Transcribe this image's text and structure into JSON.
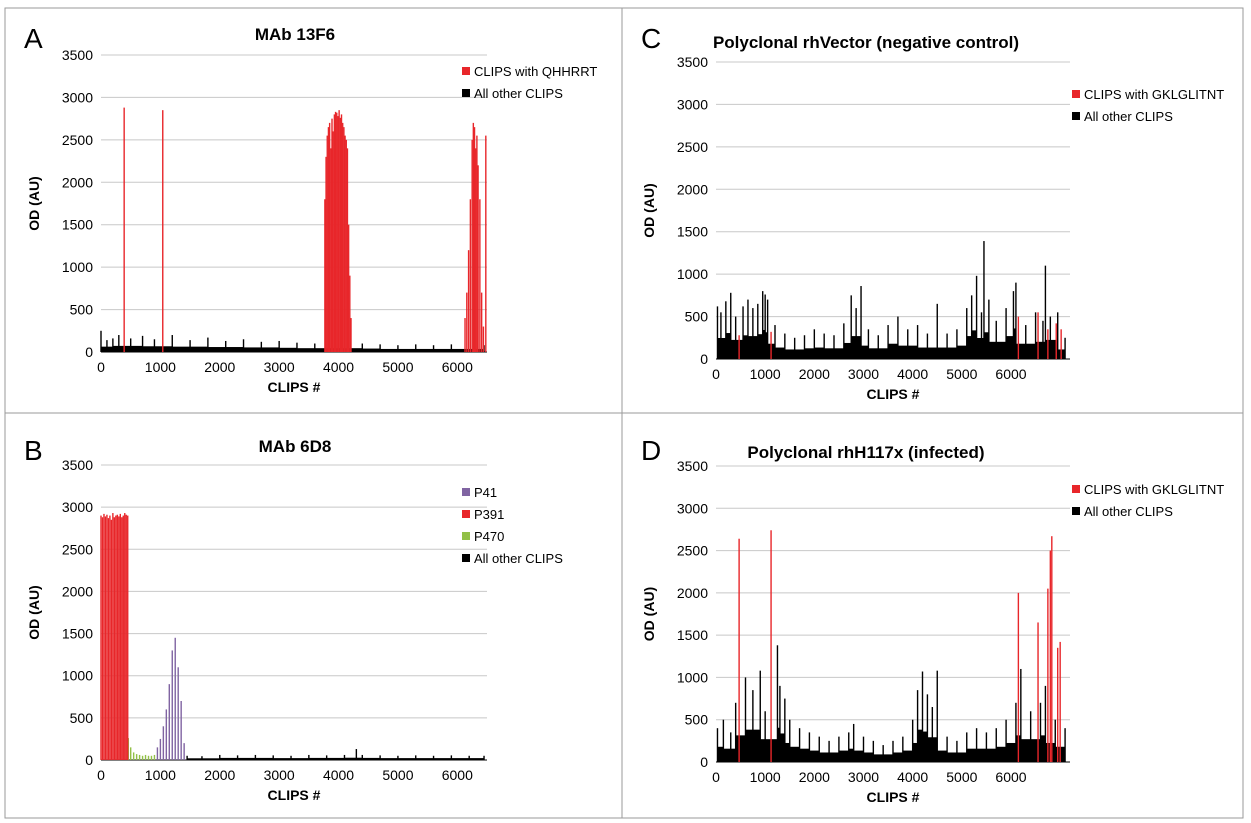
{
  "chart_data": [
    {
      "type": "bar",
      "panel": "A",
      "title": "MAb 13F6",
      "xlabel": "CLIPS #",
      "ylabel": "OD (AU)",
      "xlim": [
        0,
        6500
      ],
      "ylim": [
        0,
        3500
      ],
      "xticks": [
        0,
        1000,
        2000,
        3000,
        4000,
        5000,
        6000
      ],
      "yticks": [
        0,
        500,
        1000,
        1500,
        2000,
        2500,
        3000,
        3500
      ],
      "grid": true,
      "legend_position": "top-right",
      "series": [
        {
          "name": "CLIPS with QHHRRT",
          "color": "#e8262a",
          "x": [
            390,
            1040,
            3770,
            3790,
            3810,
            3830,
            3850,
            3870,
            3890,
            3910,
            3930,
            3950,
            3970,
            3990,
            4010,
            4030,
            4050,
            4070,
            4090,
            4110,
            4130,
            4150,
            4170,
            4190,
            4210,
            6130,
            6160,
            6190,
            6220,
            6250,
            6270,
            6290,
            6310,
            6330,
            6350,
            6380,
            6410,
            6440,
            6480
          ],
          "values": [
            2880,
            2850,
            1800,
            2300,
            2550,
            2650,
            2700,
            2400,
            2750,
            2600,
            2800,
            2830,
            2820,
            2780,
            2850,
            2760,
            2800,
            2700,
            2650,
            2550,
            2500,
            2400,
            1500,
            900,
            400,
            400,
            700,
            1200,
            1800,
            2500,
            2700,
            2650,
            2400,
            2550,
            2200,
            1800,
            700,
            300,
            2550
          ]
        },
        {
          "name": "All other CLIPS",
          "color": "#000000",
          "x": [
            0,
            100,
            200,
            300,
            500,
            700,
            900,
            1200,
            1500,
            1800,
            2100,
            2400,
            2700,
            3000,
            3300,
            3600,
            4400,
            4700,
            5000,
            5300,
            5600,
            5900,
            6450
          ],
          "values": [
            250,
            140,
            160,
            200,
            160,
            190,
            150,
            200,
            140,
            170,
            130,
            150,
            120,
            130,
            110,
            100,
            100,
            90,
            80,
            90,
            80,
            90,
            80
          ]
        }
      ]
    },
    {
      "type": "bar",
      "panel": "B",
      "title": "MAb 6D8",
      "xlabel": "CLIPS #",
      "ylabel": "OD (AU)",
      "xlim": [
        0,
        6500
      ],
      "ylim": [
        0,
        3500
      ],
      "xticks": [
        0,
        1000,
        2000,
        3000,
        4000,
        5000,
        6000
      ],
      "yticks": [
        0,
        500,
        1000,
        1500,
        2000,
        2500,
        3000,
        3500
      ],
      "grid": true,
      "legend_position": "top-right",
      "series": [
        {
          "name": "P41",
          "color": "#8064a2",
          "x": [
            950,
            1000,
            1050,
            1100,
            1150,
            1200,
            1250,
            1300,
            1350,
            1400
          ],
          "values": [
            150,
            250,
            400,
            600,
            900,
            1300,
            1450,
            1100,
            700,
            200
          ]
        },
        {
          "name": "P391",
          "color": "#e8262a",
          "x": [
            0,
            25,
            50,
            75,
            100,
            125,
            150,
            175,
            200,
            225,
            250,
            275,
            300,
            325,
            350,
            375,
            400,
            425,
            450
          ],
          "values": [
            2900,
            2880,
            2920,
            2890,
            2910,
            2870,
            2900,
            2850,
            2930,
            2880,
            2900,
            2910,
            2890,
            2920,
            2880,
            2900,
            2930,
            2910,
            2900
          ]
        },
        {
          "name": "P470",
          "color": "#92c047",
          "x": [
            460,
            500,
            550,
            600,
            650,
            700,
            750,
            800,
            850,
            900
          ],
          "values": [
            260,
            150,
            90,
            70,
            60,
            50,
            60,
            50,
            50,
            60
          ]
        },
        {
          "name": "All other CLIPS",
          "color": "#000000",
          "x": [
            1450,
            1700,
            2000,
            2300,
            2600,
            2900,
            3200,
            3500,
            3800,
            4100,
            4300,
            4400,
            4700,
            5000,
            5300,
            5600,
            5900,
            6200,
            6450
          ],
          "values": [
            50,
            45,
            60,
            55,
            60,
            55,
            50,
            60,
            55,
            60,
            130,
            60,
            55,
            50,
            55,
            50,
            55,
            50,
            50
          ]
        }
      ]
    },
    {
      "type": "bar",
      "panel": "C",
      "title": "Polyclonal rhVector (negative control)",
      "xlabel": "CLIPS #",
      "ylabel": "OD (AU)",
      "xlim": [
        0,
        7200
      ],
      "ylim": [
        0,
        3500
      ],
      "xticks": [
        0,
        1000,
        2000,
        3000,
        4000,
        5000,
        6000
      ],
      "yticks": [
        0,
        500,
        1000,
        1500,
        2000,
        2500,
        3000,
        3500
      ],
      "grid": true,
      "legend_position": "top-right",
      "series": [
        {
          "name": "CLIPS with GKLGLITNT",
          "color": "#e8262a",
          "x": [
            470,
            1120,
            6150,
            6550,
            6750,
            6920,
            7020
          ],
          "values": [
            280,
            320,
            500,
            550,
            350,
            420,
            350
          ]
        },
        {
          "name": "All other CLIPS",
          "color": "#000000",
          "x": [
            30,
            100,
            200,
            300,
            400,
            550,
            650,
            750,
            850,
            950,
            1000,
            1050,
            1200,
            1400,
            1600,
            1800,
            2000,
            2200,
            2400,
            2600,
            2750,
            2850,
            2950,
            3100,
            3300,
            3500,
            3700,
            3900,
            4100,
            4300,
            4500,
            4700,
            4900,
            5100,
            5200,
            5300,
            5400,
            5450,
            5550,
            5700,
            5900,
            6050,
            6100,
            6300,
            6500,
            6650,
            6700,
            6800,
            6950,
            7100
          ],
          "values": [
            620,
            550,
            680,
            780,
            500,
            620,
            700,
            600,
            650,
            800,
            760,
            700,
            400,
            300,
            250,
            280,
            350,
            300,
            280,
            420,
            750,
            600,
            860,
            350,
            280,
            400,
            500,
            350,
            400,
            300,
            650,
            300,
            350,
            600,
            750,
            980,
            550,
            1390,
            700,
            450,
            600,
            800,
            900,
            400,
            550,
            450,
            1100,
            500,
            550,
            250
          ]
        }
      ]
    },
    {
      "type": "bar",
      "panel": "D",
      "title": "Polyclonal rhH117x (infected)",
      "xlabel": "CLIPS #",
      "ylabel": "OD (AU)",
      "xlim": [
        0,
        7200
      ],
      "ylim": [
        0,
        3500
      ],
      "xticks": [
        0,
        1000,
        2000,
        3000,
        4000,
        5000,
        6000
      ],
      "yticks": [
        0,
        500,
        1000,
        1500,
        2000,
        2500,
        3000,
        3500
      ],
      "grid": true,
      "legend_position": "top-right",
      "series": [
        {
          "name": "CLIPS with GKLGLITNT",
          "color": "#e8262a",
          "x": [
            470,
            1120,
            6150,
            6550,
            6750,
            6800,
            6830,
            6950,
            7000
          ],
          "values": [
            2640,
            2740,
            2000,
            1650,
            2050,
            2500,
            2670,
            1350,
            1420
          ]
        },
        {
          "name": "All other CLIPS",
          "color": "#000000",
          "x": [
            30,
            150,
            300,
            400,
            600,
            750,
            900,
            1000,
            1250,
            1300,
            1400,
            1500,
            1700,
            1900,
            2100,
            2300,
            2500,
            2700,
            2800,
            3000,
            3200,
            3400,
            3600,
            3800,
            4000,
            4100,
            4200,
            4300,
            4400,
            4500,
            4700,
            4900,
            5100,
            5300,
            5500,
            5700,
            5900,
            6100,
            6200,
            6400,
            6600,
            6700,
            6900,
            7100
          ],
          "values": [
            400,
            500,
            350,
            700,
            1000,
            850,
            1080,
            600,
            1380,
            900,
            750,
            500,
            400,
            350,
            300,
            250,
            300,
            350,
            450,
            300,
            250,
            200,
            250,
            300,
            500,
            850,
            1070,
            800,
            650,
            1080,
            300,
            250,
            350,
            400,
            350,
            400,
            500,
            700,
            1100,
            600,
            700,
            900,
            500,
            400
          ]
        }
      ]
    }
  ]
}
